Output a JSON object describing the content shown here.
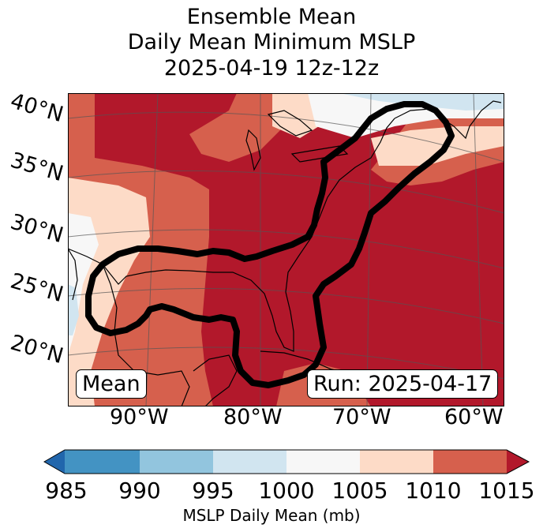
{
  "title": {
    "line1": "Ensemble Mean",
    "line2": "Daily Mean Minimum MSLP",
    "line3": "2025-04-19 12z-12z"
  },
  "latitude_labels": [
    "40°N",
    "35°N",
    "30°N",
    "25°N",
    "20°N"
  ],
  "longitude_labels": [
    "90°W",
    "80°W",
    "70°W",
    "60°W"
  ],
  "map": {
    "legend_left": "Mean",
    "legend_right": "Run: 2025-04-17",
    "contour_color": "#000000",
    "coast_color": "#000000"
  },
  "colorbar": {
    "label": "MSLP Daily Mean (mb)",
    "ticks": [
      "985",
      "990",
      "995",
      "1000",
      "1005",
      "1010",
      "1015"
    ],
    "colors": [
      "#2166ac",
      "#4393c3",
      "#92c5de",
      "#d1e5f0",
      "#f7f7f7",
      "#fddbc7",
      "#d6604d",
      "#b2182b"
    ],
    "bins": [
      {
        "from": 985,
        "to": 990,
        "color": "#4393c3"
      },
      {
        "from": 990,
        "to": 995,
        "color": "#92c5de"
      },
      {
        "from": 995,
        "to": 1000,
        "color": "#d1e5f0"
      },
      {
        "from": 1000,
        "to": 1005,
        "color": "#f7f7f7"
      },
      {
        "from": 1005,
        "to": 1010,
        "color": "#fddbc7"
      },
      {
        "from": 1010,
        "to": 1015,
        "color": "#d6604d"
      }
    ]
  }
}
